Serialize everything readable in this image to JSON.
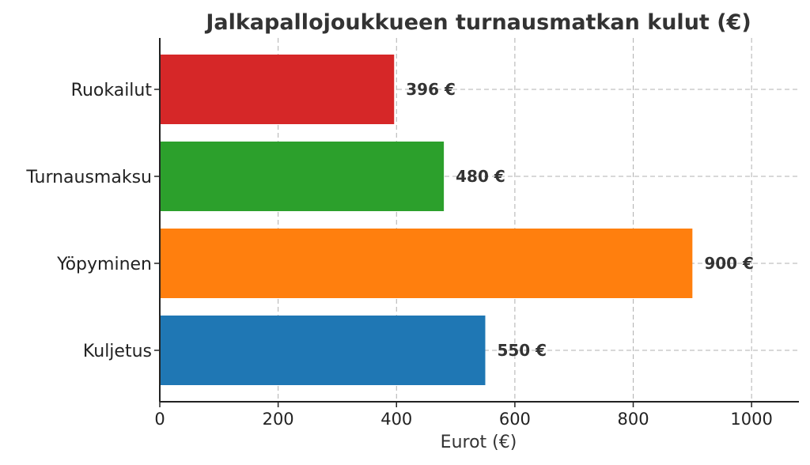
{
  "chart_data": {
    "type": "bar",
    "orientation": "horizontal",
    "title": "Jalkapallojoukkueen turnausmatkan kulut (€)",
    "xlabel": "Eurot (€)",
    "ylabel": "",
    "categories": [
      "Kuljetus",
      "Yöpyminen",
      "Turnausmaksu",
      "Ruokailut"
    ],
    "values": [
      550,
      900,
      480,
      396
    ],
    "value_labels": [
      "550 €",
      "900 €",
      "480 €",
      "396 €"
    ],
    "colors": [
      "#1f77b4",
      "#ff7f0e",
      "#2ca02c",
      "#d62728"
    ],
    "xlim": [
      0,
      1080
    ],
    "xticks": [
      0,
      200,
      400,
      600,
      800,
      1000
    ],
    "grid": true
  }
}
